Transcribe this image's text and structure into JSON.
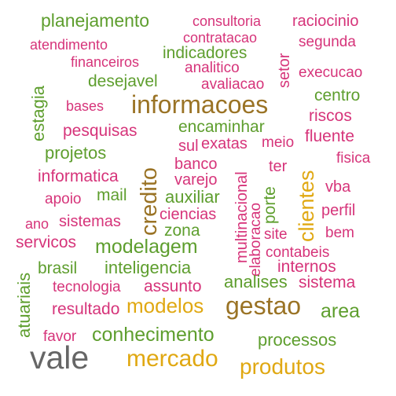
{
  "colors": {
    "pink": "#d6347a",
    "green": "#5e9e2e",
    "brown": "#9a7325",
    "gold": "#e0a812",
    "gray": "#666666"
  },
  "words": [
    {
      "text": "planejamento",
      "color": "green"
    },
    {
      "text": "consultoria",
      "color": "pink"
    },
    {
      "text": "raciocinio",
      "color": "pink"
    },
    {
      "text": "contratacao",
      "color": "pink"
    },
    {
      "text": "atendimento",
      "color": "pink"
    },
    {
      "text": "segunda",
      "color": "pink"
    },
    {
      "text": "indicadores",
      "color": "green"
    },
    {
      "text": "financeiros",
      "color": "pink"
    },
    {
      "text": "analitico",
      "color": "pink"
    },
    {
      "text": "setor",
      "color": "pink"
    },
    {
      "text": "execucao",
      "color": "pink"
    },
    {
      "text": "desejavel",
      "color": "green"
    },
    {
      "text": "avaliacao",
      "color": "pink"
    },
    {
      "text": "estagia",
      "color": "green"
    },
    {
      "text": "centro",
      "color": "green"
    },
    {
      "text": "bases",
      "color": "pink"
    },
    {
      "text": "informacoes",
      "color": "brown"
    },
    {
      "text": "riscos",
      "color": "pink"
    },
    {
      "text": "encaminhar",
      "color": "green"
    },
    {
      "text": "pesquisas",
      "color": "pink"
    },
    {
      "text": "fluente",
      "color": "pink"
    },
    {
      "text": "sul",
      "color": "pink"
    },
    {
      "text": "exatas",
      "color": "pink"
    },
    {
      "text": "meio",
      "color": "pink"
    },
    {
      "text": "projetos",
      "color": "green"
    },
    {
      "text": "credito",
      "color": "brown"
    },
    {
      "text": "fisica",
      "color": "pink"
    },
    {
      "text": "banco",
      "color": "pink"
    },
    {
      "text": "multinacional",
      "color": "pink"
    },
    {
      "text": "ter",
      "color": "pink"
    },
    {
      "text": "informatica",
      "color": "pink"
    },
    {
      "text": "varejo",
      "color": "pink"
    },
    {
      "text": "clientes",
      "color": "gold"
    },
    {
      "text": "vba",
      "color": "pink"
    },
    {
      "text": "apoio",
      "color": "pink"
    },
    {
      "text": "mail",
      "color": "green"
    },
    {
      "text": "auxiliar",
      "color": "green"
    },
    {
      "text": "porte",
      "color": "green"
    },
    {
      "text": "ciencias",
      "color": "pink"
    },
    {
      "text": "perfil",
      "color": "pink"
    },
    {
      "text": "ano",
      "color": "pink"
    },
    {
      "text": "sistemas",
      "color": "pink"
    },
    {
      "text": "elaboracao",
      "color": "pink"
    },
    {
      "text": "zona",
      "color": "green"
    },
    {
      "text": "site",
      "color": "pink"
    },
    {
      "text": "bem",
      "color": "pink"
    },
    {
      "text": "servicos",
      "color": "pink"
    },
    {
      "text": "modelagem",
      "color": "green"
    },
    {
      "text": "contabeis",
      "color": "pink"
    },
    {
      "text": "inteligencia",
      "color": "green"
    },
    {
      "text": "internos",
      "color": "pink"
    },
    {
      "text": "atuariais",
      "color": "green"
    },
    {
      "text": "brasil",
      "color": "green"
    },
    {
      "text": "analises",
      "color": "green"
    },
    {
      "text": "sistema",
      "color": "pink"
    },
    {
      "text": "tecnologia",
      "color": "pink"
    },
    {
      "text": "assunto",
      "color": "pink"
    },
    {
      "text": "modelos",
      "color": "gold"
    },
    {
      "text": "gestao",
      "color": "brown"
    },
    {
      "text": "resultado",
      "color": "pink"
    },
    {
      "text": "area",
      "color": "green"
    },
    {
      "text": "favor",
      "color": "pink"
    },
    {
      "text": "conhecimento",
      "color": "green"
    },
    {
      "text": "processos",
      "color": "green"
    },
    {
      "text": "vale",
      "color": "gray"
    },
    {
      "text": "mercado",
      "color": "gold"
    },
    {
      "text": "produtos",
      "color": "gold"
    }
  ]
}
